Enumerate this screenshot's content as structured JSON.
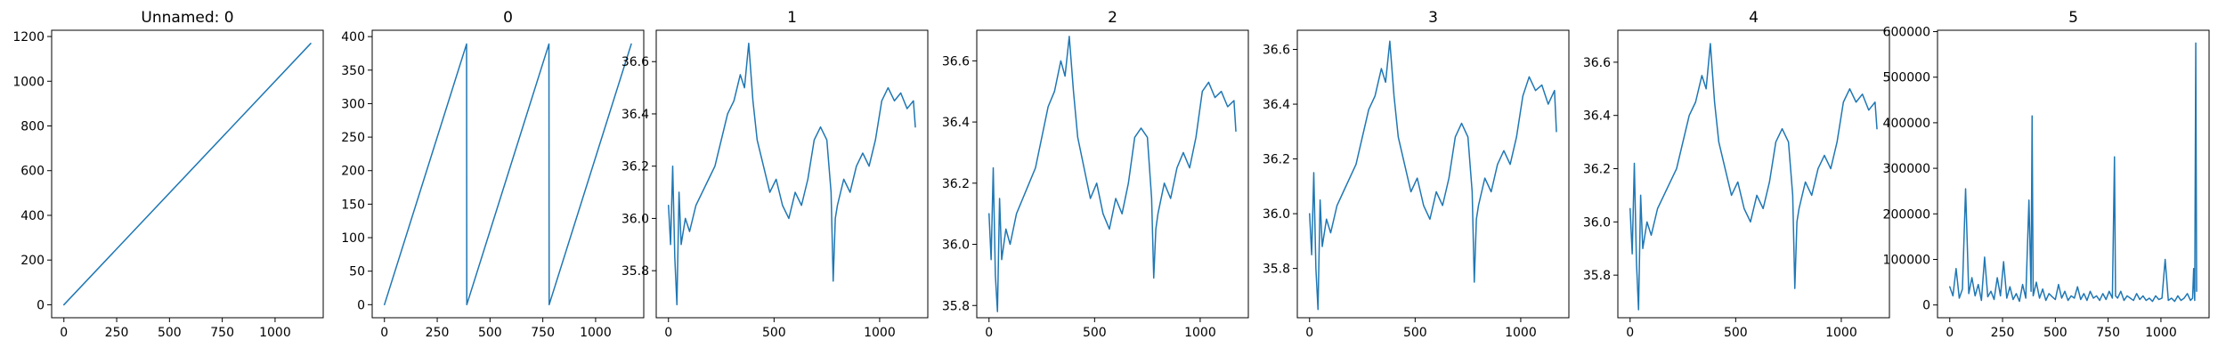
{
  "figure": {
    "line_color": "#1f77b4"
  },
  "chart_data": [
    {
      "type": "line",
      "title": "Unnamed: 0",
      "xlim": [
        -58,
        1228
      ],
      "ylim": [
        -58,
        1228
      ],
      "xticks": [
        0,
        250,
        500,
        750,
        1000
      ],
      "yticks": [
        0,
        200,
        400,
        600,
        800,
        1000,
        1200
      ],
      "grid": false,
      "series": [
        {
          "x": [
            0,
            1169
          ],
          "y": [
            0,
            1169
          ]
        }
      ]
    },
    {
      "type": "line",
      "title": "0",
      "xlim": [
        -58,
        1228
      ],
      "ylim": [
        -19.5,
        409.5
      ],
      "xticks": [
        0,
        250,
        500,
        750,
        1000
      ],
      "yticks": [
        0,
        50,
        100,
        150,
        200,
        250,
        300,
        350,
        400
      ],
      "grid": false,
      "series": [
        {
          "x": [
            0,
            389,
            390,
            779,
            780,
            1169
          ],
          "y": [
            0,
            389,
            0,
            389,
            0,
            389
          ]
        }
      ]
    },
    {
      "type": "line",
      "title": "1",
      "xlim": [
        -58,
        1228
      ],
      "ylim": [
        35.62,
        36.72
      ],
      "xticks": [
        0,
        500,
        1000
      ],
      "yticks": [
        35.8,
        36.0,
        36.2,
        36.4,
        36.6
      ],
      "grid": false,
      "series": [
        {
          "x": [
            0,
            10,
            20,
            30,
            40,
            50,
            60,
            80,
            100,
            130,
            160,
            190,
            220,
            250,
            280,
            310,
            340,
            360,
            380,
            400,
            420,
            450,
            480,
            510,
            540,
            570,
            600,
            630,
            660,
            690,
            720,
            750,
            770,
            780,
            790,
            800,
            830,
            860,
            890,
            920,
            950,
            980,
            1010,
            1040,
            1070,
            1100,
            1130,
            1160,
            1169
          ],
          "y": [
            36.05,
            35.9,
            36.2,
            35.85,
            35.67,
            36.1,
            35.9,
            36.0,
            35.95,
            36.05,
            36.1,
            36.15,
            36.2,
            36.3,
            36.4,
            36.45,
            36.55,
            36.5,
            36.67,
            36.45,
            36.3,
            36.2,
            36.1,
            36.15,
            36.05,
            36.0,
            36.1,
            36.05,
            36.15,
            36.3,
            36.35,
            36.3,
            36.1,
            35.76,
            36.0,
            36.05,
            36.15,
            36.1,
            36.2,
            36.25,
            36.2,
            36.3,
            36.45,
            36.5,
            36.45,
            36.48,
            36.42,
            36.45,
            36.35
          ]
        }
      ]
    },
    {
      "type": "line",
      "title": "2",
      "xlim": [
        -58,
        1228
      ],
      "ylim": [
        35.76,
        36.7
      ],
      "xticks": [
        0,
        500,
        1000
      ],
      "yticks": [
        35.8,
        36.0,
        36.2,
        36.4,
        36.6
      ],
      "grid": false,
      "series": [
        {
          "x": [
            0,
            10,
            20,
            30,
            40,
            50,
            60,
            80,
            100,
            130,
            160,
            190,
            220,
            250,
            280,
            310,
            340,
            360,
            380,
            400,
            420,
            450,
            480,
            510,
            540,
            570,
            600,
            630,
            660,
            690,
            720,
            750,
            770,
            780,
            790,
            800,
            830,
            860,
            890,
            920,
            950,
            980,
            1010,
            1040,
            1070,
            1100,
            1130,
            1160,
            1169
          ],
          "y": [
            36.1,
            35.95,
            36.25,
            35.9,
            35.78,
            36.15,
            35.95,
            36.05,
            36.0,
            36.1,
            36.15,
            36.2,
            36.25,
            36.35,
            36.45,
            36.5,
            36.6,
            36.55,
            36.68,
            36.5,
            36.35,
            36.25,
            36.15,
            36.2,
            36.1,
            36.05,
            36.15,
            36.1,
            36.2,
            36.35,
            36.38,
            36.35,
            36.15,
            35.89,
            36.05,
            36.1,
            36.2,
            36.15,
            36.25,
            36.3,
            36.25,
            36.35,
            36.5,
            36.53,
            36.48,
            36.5,
            36.45,
            36.47,
            36.37
          ]
        }
      ]
    },
    {
      "type": "line",
      "title": "3",
      "xlim": [
        -58,
        1228
      ],
      "ylim": [
        35.62,
        36.67
      ],
      "xticks": [
        0,
        500,
        1000
      ],
      "yticks": [
        35.8,
        36.0,
        36.2,
        36.4,
        36.6
      ],
      "grid": false,
      "series": [
        {
          "x": [
            0,
            10,
            20,
            30,
            40,
            50,
            60,
            80,
            100,
            130,
            160,
            190,
            220,
            250,
            280,
            310,
            340,
            360,
            380,
            400,
            420,
            450,
            480,
            510,
            540,
            570,
            600,
            630,
            660,
            690,
            720,
            750,
            770,
            780,
            790,
            800,
            830,
            860,
            890,
            920,
            950,
            980,
            1010,
            1040,
            1070,
            1100,
            1130,
            1160,
            1169
          ],
          "y": [
            36.0,
            35.85,
            36.15,
            35.8,
            35.65,
            36.05,
            35.88,
            35.98,
            35.93,
            36.03,
            36.08,
            36.13,
            36.18,
            36.28,
            36.38,
            36.43,
            36.53,
            36.48,
            36.63,
            36.43,
            36.28,
            36.18,
            36.08,
            36.13,
            36.03,
            35.98,
            36.08,
            36.03,
            36.13,
            36.28,
            36.33,
            36.28,
            36.08,
            35.75,
            35.98,
            36.03,
            36.13,
            36.08,
            36.18,
            36.23,
            36.18,
            36.28,
            36.43,
            36.5,
            36.45,
            36.47,
            36.4,
            36.45,
            36.3
          ]
        }
      ]
    },
    {
      "type": "line",
      "title": "4",
      "xlim": [
        -58,
        1228
      ],
      "ylim": [
        35.64,
        36.72
      ],
      "xticks": [
        0,
        500,
        1000
      ],
      "yticks": [
        35.8,
        36.0,
        36.2,
        36.4,
        36.6
      ],
      "grid": false,
      "series": [
        {
          "x": [
            0,
            10,
            20,
            30,
            40,
            50,
            60,
            80,
            100,
            130,
            160,
            190,
            220,
            250,
            280,
            310,
            340,
            360,
            380,
            400,
            420,
            450,
            480,
            510,
            540,
            570,
            600,
            630,
            660,
            690,
            720,
            750,
            770,
            780,
            790,
            800,
            830,
            860,
            890,
            920,
            950,
            980,
            1010,
            1040,
            1070,
            1100,
            1130,
            1160,
            1169
          ],
          "y": [
            36.05,
            35.88,
            36.22,
            35.85,
            35.67,
            36.1,
            35.9,
            36.0,
            35.95,
            36.05,
            36.1,
            36.15,
            36.2,
            36.3,
            36.4,
            36.45,
            36.55,
            36.5,
            36.67,
            36.45,
            36.3,
            36.2,
            36.1,
            36.15,
            36.05,
            36.0,
            36.1,
            36.05,
            36.15,
            36.3,
            36.35,
            36.3,
            36.1,
            35.75,
            36.0,
            36.05,
            36.15,
            36.1,
            36.2,
            36.25,
            36.2,
            36.3,
            36.45,
            36.5,
            36.45,
            36.48,
            36.42,
            36.45,
            36.35
          ]
        }
      ]
    },
    {
      "type": "line",
      "title": "5",
      "xlim": [
        -58,
        1228
      ],
      "ylim": [
        -28000,
        603000
      ],
      "xticks": [
        0,
        250,
        500,
        750,
        1000
      ],
      "yticks": [
        0,
        100000,
        200000,
        300000,
        400000,
        500000,
        600000
      ],
      "grid": false,
      "series": [
        {
          "x": [
            0,
            15,
            30,
            45,
            60,
            75,
            90,
            105,
            120,
            135,
            150,
            165,
            180,
            195,
            210,
            225,
            240,
            255,
            270,
            285,
            300,
            315,
            330,
            345,
            360,
            375,
            385,
            390,
            395,
            410,
            425,
            440,
            455,
            470,
            485,
            500,
            515,
            530,
            545,
            560,
            575,
            590,
            605,
            620,
            635,
            650,
            665,
            680,
            695,
            710,
            725,
            740,
            755,
            770,
            780,
            785,
            795,
            810,
            825,
            840,
            855,
            870,
            885,
            900,
            915,
            930,
            945,
            960,
            975,
            990,
            1005,
            1020,
            1035,
            1050,
            1065,
            1080,
            1095,
            1110,
            1125,
            1140,
            1150,
            1155,
            1160,
            1165,
            1169
          ],
          "y": [
            40000,
            20000,
            80000,
            15000,
            35000,
            255000,
            25000,
            60000,
            20000,
            45000,
            10000,
            105000,
            18000,
            30000,
            12000,
            60000,
            20000,
            95000,
            15000,
            40000,
            12000,
            25000,
            8000,
            45000,
            15000,
            230000,
            30000,
            415000,
            20000,
            50000,
            15000,
            35000,
            10000,
            25000,
            18000,
            12000,
            45000,
            15000,
            30000,
            10000,
            20000,
            15000,
            40000,
            12000,
            25000,
            10000,
            30000,
            15000,
            20000,
            10000,
            25000,
            12000,
            30000,
            15000,
            325000,
            20000,
            15000,
            30000,
            10000,
            20000,
            15000,
            10000,
            25000,
            12000,
            20000,
            10000,
            15000,
            8000,
            20000,
            12000,
            15000,
            100000,
            10000,
            15000,
            8000,
            20000,
            10000,
            15000,
            25000,
            10000,
            15000,
            80000,
            10000,
            575000,
            30000
          ]
        }
      ]
    }
  ]
}
